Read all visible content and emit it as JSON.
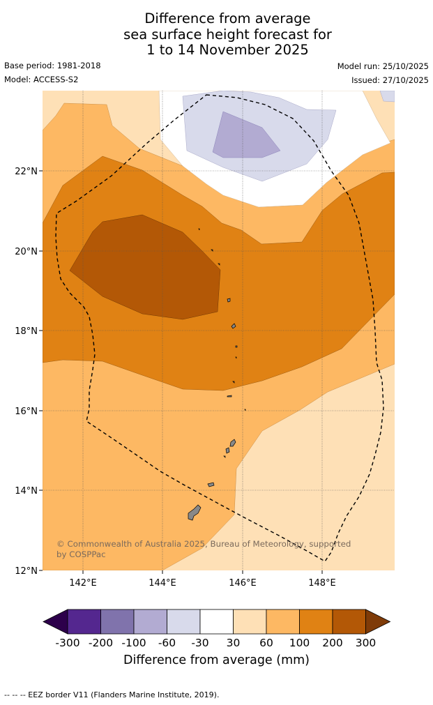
{
  "title_lines": [
    "Difference from average",
    "sea surface height forecast for",
    "1 to 14 November 2025"
  ],
  "meta": {
    "base_period": "Base period: 1981-2018",
    "model": "Model: ACCESS-S2",
    "model_run": "Model run: 25/10/2025",
    "issued": "Issued: 27/10/2025"
  },
  "map": {
    "lat_ticks": [
      "22°N",
      "20°N",
      "18°N",
      "16°N",
      "14°N",
      "12°N"
    ],
    "lon_ticks": [
      "142°E",
      "144°E",
      "146°E",
      "148°E"
    ],
    "credit_lines": [
      "© Commonwealth of Australia 2025, Bureau of Meteorology, supported",
      "by COSPPac"
    ]
  },
  "colorbar": {
    "bins": [
      {
        "lo": -300,
        "hi": -200,
        "color": "#54278f"
      },
      {
        "lo": -200,
        "hi": -100,
        "color": "#8073ac"
      },
      {
        "lo": -100,
        "hi": -60,
        "color": "#b2abd2"
      },
      {
        "lo": -60,
        "hi": -30,
        "color": "#d8daeb"
      },
      {
        "lo": -30,
        "hi": 30,
        "color": "#ffffff"
      },
      {
        "lo": 30,
        "hi": 60,
        "color": "#fee0b6"
      },
      {
        "lo": 60,
        "hi": 100,
        "color": "#fdb863"
      },
      {
        "lo": 100,
        "hi": 200,
        "color": "#e08214"
      },
      {
        "lo": 200,
        "hi": 300,
        "color": "#b35806"
      }
    ],
    "under_color": "#2d004b",
    "over_color": "#7f3b08",
    "labels": [
      "-300",
      "-200",
      "-100",
      "-60",
      "-30",
      "30",
      "60",
      "100",
      "200",
      "300"
    ],
    "title": "Difference from average (mm)"
  },
  "footer": "--  --  -- EEZ border V11 (Flanders Marine Institute, 2019)."
}
